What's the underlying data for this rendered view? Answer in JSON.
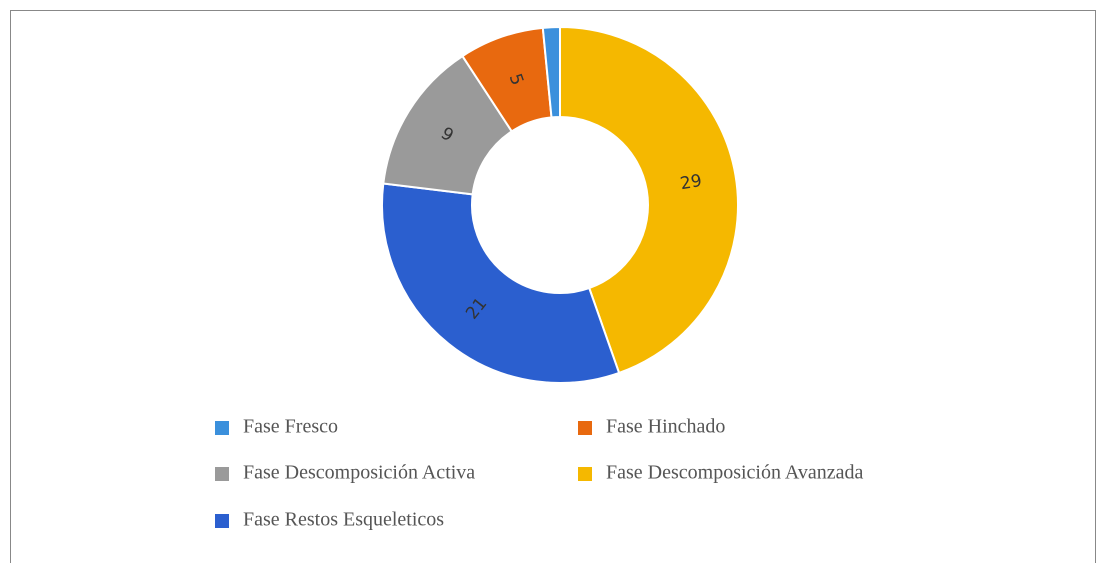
{
  "chart_data": {
    "type": "donut",
    "categories": [
      "Fase Descomposición Avanzada",
      "Fase Restos Esqueleticos",
      "Fase Descomposición Activa",
      "Fase Hinchado",
      "Fase Fresco"
    ],
    "values": [
      29,
      21,
      9,
      5,
      1
    ],
    "value_labels": [
      "29",
      "21",
      "9",
      "5",
      null
    ],
    "colors": [
      "#f5b800",
      "#2b5fcf",
      "#9a9a9a",
      "#e8690f",
      "#3b90dc"
    ],
    "legend": "bottom"
  }
}
